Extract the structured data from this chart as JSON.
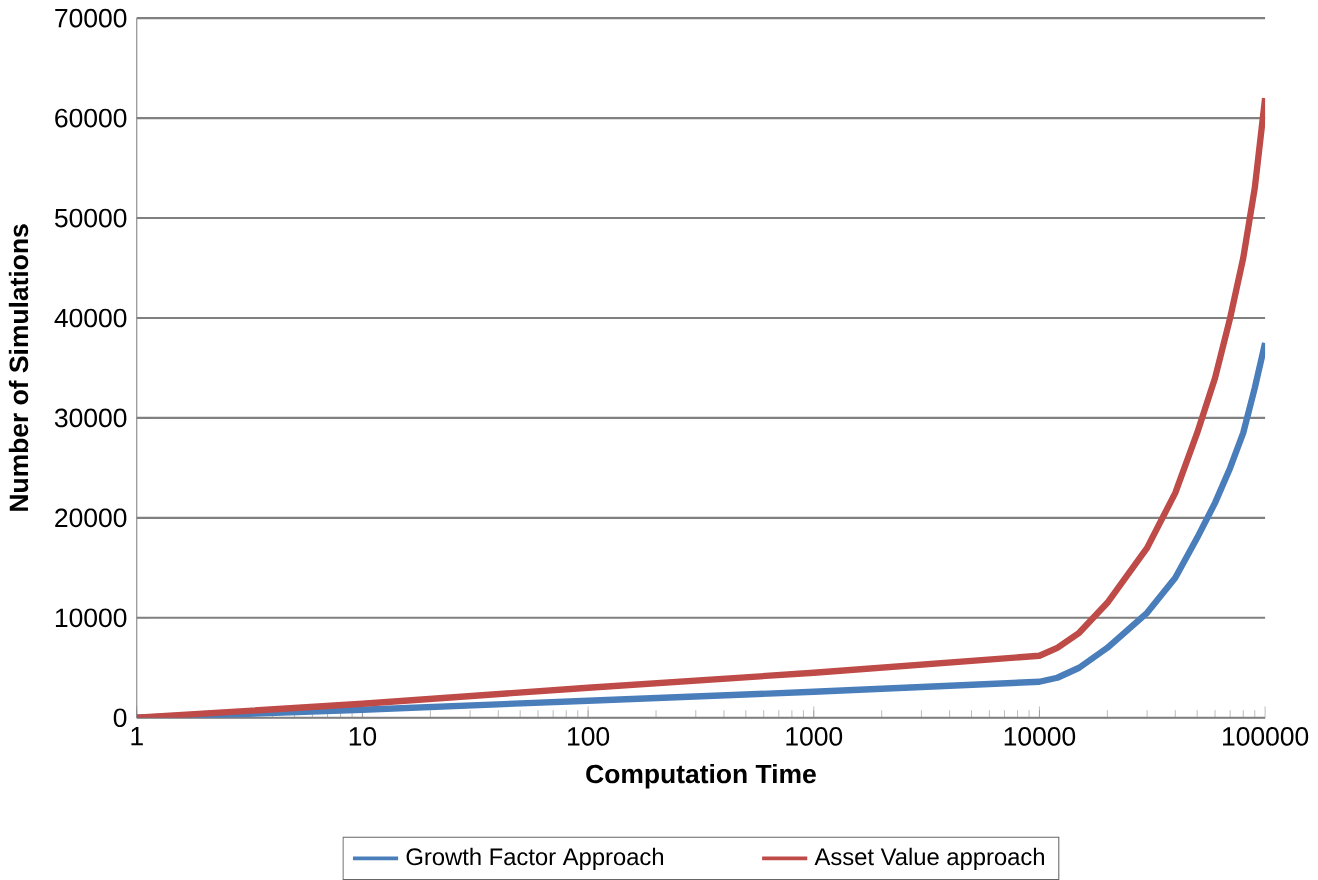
{
  "chart_data": {
    "type": "line",
    "xlabel": "Computation Time",
    "ylabel": "Number of Simulations",
    "log": "x",
    "grid": "y",
    "legend": "bottom",
    "marker": "none",
    "line_style": "solid",
    "xlim": [
      1,
      100000
    ],
    "xticks": [
      1,
      10,
      100,
      1000,
      10000,
      100000
    ],
    "ylim": [
      0,
      70000
    ],
    "yticks": [
      0,
      10000,
      20000,
      30000,
      40000,
      50000,
      60000,
      70000
    ],
    "series": [
      {
        "name": "Growth Factor Approach",
        "color": "#4a7ebb",
        "x": [
          1,
          10,
          100,
          1000,
          10000,
          12000,
          15000,
          20000,
          30000,
          40000,
          50000,
          60000,
          70000,
          80000,
          90000,
          100000
        ],
        "values": [
          0,
          800,
          1700,
          2600,
          3600,
          4000,
          5000,
          7000,
          10500,
          14000,
          18000,
          21500,
          25000,
          28500,
          33000,
          37500
        ]
      },
      {
        "name": "Asset Value approach",
        "color": "#be4b48",
        "x": [
          1,
          10,
          100,
          1000,
          10000,
          12000,
          15000,
          20000,
          30000,
          40000,
          50000,
          60000,
          70000,
          80000,
          90000,
          100000
        ],
        "values": [
          0,
          1400,
          3000,
          4500,
          6200,
          7000,
          8500,
          11500,
          17000,
          22500,
          28500,
          34000,
          40000,
          46000,
          53000,
          62000
        ]
      }
    ]
  }
}
